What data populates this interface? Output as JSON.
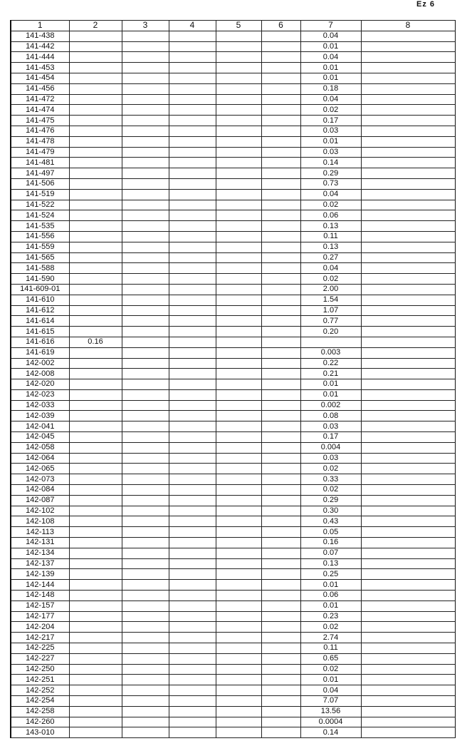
{
  "page_mark": "Ez 6",
  "columns": [
    "1",
    "2",
    "3",
    "4",
    "5",
    "6",
    "7",
    "8"
  ],
  "rows": [
    {
      "c1": "141-438",
      "c2": "",
      "c7": "0.04"
    },
    {
      "c1": "141-442",
      "c2": "",
      "c7": "0.01"
    },
    {
      "c1": "141-444",
      "c2": "",
      "c7": "0.04"
    },
    {
      "c1": "141-453",
      "c2": "",
      "c7": "0.01"
    },
    {
      "c1": "141-454",
      "c2": "",
      "c7": "0.01"
    },
    {
      "c1": "141-456",
      "c2": "",
      "c7": "0.18"
    },
    {
      "c1": "141-472",
      "c2": "",
      "c7": "0.04"
    },
    {
      "c1": "141-474",
      "c2": "",
      "c7": "0.02"
    },
    {
      "c1": "141-475",
      "c2": "",
      "c7": "0.17"
    },
    {
      "c1": "141-476",
      "c2": "",
      "c7": "0.03"
    },
    {
      "c1": "141-478",
      "c2": "",
      "c7": "0.01"
    },
    {
      "c1": "141-479",
      "c2": "",
      "c7": "0.03"
    },
    {
      "c1": "141-481",
      "c2": "",
      "c7": "0.14"
    },
    {
      "c1": "141-497",
      "c2": "",
      "c7": "0.29"
    },
    {
      "c1": "141-506",
      "c2": "",
      "c7": "0.73"
    },
    {
      "c1": "141-519",
      "c2": "",
      "c7": "0.04"
    },
    {
      "c1": "141-522",
      "c2": "",
      "c7": "0.02"
    },
    {
      "c1": "141-524",
      "c2": "",
      "c7": "0.06"
    },
    {
      "c1": "141-535",
      "c2": "",
      "c7": "0.13"
    },
    {
      "c1": "141-556",
      "c2": "",
      "c7": "0.11"
    },
    {
      "c1": "141-559",
      "c2": "",
      "c7": "0.13"
    },
    {
      "c1": "141-565",
      "c2": "",
      "c7": "0.27"
    },
    {
      "c1": "141-588",
      "c2": "",
      "c7": "0.04"
    },
    {
      "c1": "141-590",
      "c2": "",
      "c7": "0.02"
    },
    {
      "c1": "141-609-01",
      "c2": "",
      "c7": "2.00"
    },
    {
      "c1": "141-610",
      "c2": "",
      "c7": "1.54"
    },
    {
      "c1": "141-612",
      "c2": "",
      "c7": "1.07"
    },
    {
      "c1": "141-614",
      "c2": "",
      "c7": "0.77"
    },
    {
      "c1": "141-615",
      "c2": "",
      "c7": "0.20"
    },
    {
      "c1": "141-616",
      "c2": "0.16",
      "c7": ""
    },
    {
      "c1": "141-619",
      "c2": "",
      "c7": "0.003"
    },
    {
      "c1": "142-002",
      "c2": "",
      "c7": "0.22"
    },
    {
      "c1": "142-008",
      "c2": "",
      "c7": "0.21"
    },
    {
      "c1": "142-020",
      "c2": "",
      "c7": "0.01"
    },
    {
      "c1": "142-023",
      "c2": "",
      "c7": "0.01"
    },
    {
      "c1": "142-033",
      "c2": "",
      "c7": "0.002"
    },
    {
      "c1": "142-039",
      "c2": "",
      "c7": "0.08"
    },
    {
      "c1": "142-041",
      "c2": "",
      "c7": "0.03"
    },
    {
      "c1": "142-045",
      "c2": "",
      "c7": "0.17"
    },
    {
      "c1": "142-058",
      "c2": "",
      "c7": "0.004"
    },
    {
      "c1": "142-064",
      "c2": "",
      "c7": "0.03"
    },
    {
      "c1": "142-065",
      "c2": "",
      "c7": "0.02"
    },
    {
      "c1": "142-073",
      "c2": "",
      "c7": "0.33"
    },
    {
      "c1": "142-084",
      "c2": "",
      "c7": "0.02"
    },
    {
      "c1": "142-087",
      "c2": "",
      "c7": "0.29"
    },
    {
      "c1": "142-102",
      "c2": "",
      "c7": "0.30"
    },
    {
      "c1": "142-108",
      "c2": "",
      "c7": "0.43"
    },
    {
      "c1": "142-113",
      "c2": "",
      "c7": "0.05"
    },
    {
      "c1": "142-131",
      "c2": "",
      "c7": "0.16"
    },
    {
      "c1": "142-134",
      "c2": "",
      "c7": "0.07"
    },
    {
      "c1": "142-137",
      "c2": "",
      "c7": "0.13"
    },
    {
      "c1": "142-139",
      "c2": "",
      "c7": "0.25"
    },
    {
      "c1": "142-144",
      "c2": "",
      "c7": "0.01"
    },
    {
      "c1": "142-148",
      "c2": "",
      "c7": "0.06"
    },
    {
      "c1": "142-157",
      "c2": "",
      "c7": "0.01"
    },
    {
      "c1": "142-177",
      "c2": "",
      "c7": "0.23"
    },
    {
      "c1": "142-204",
      "c2": "",
      "c7": "0.02"
    },
    {
      "c1": "142-217",
      "c2": "",
      "c7": "2.74"
    },
    {
      "c1": "142-225",
      "c2": "",
      "c7": "0.11"
    },
    {
      "c1": "142-227",
      "c2": "",
      "c7": "0.65"
    },
    {
      "c1": "142-250",
      "c2": "",
      "c7": "0.02"
    },
    {
      "c1": "142-251",
      "c2": "",
      "c7": "0.01"
    },
    {
      "c1": "142-252",
      "c2": "",
      "c7": "0.04"
    },
    {
      "c1": "142-254",
      "c2": "",
      "c7": "7.07"
    },
    {
      "c1": "142-258",
      "c2": "",
      "c7": "13.56"
    },
    {
      "c1": "142-260",
      "c2": "",
      "c7": "0.0004"
    },
    {
      "c1": "143-010",
      "c2": "",
      "c7": "0.14"
    }
  ]
}
